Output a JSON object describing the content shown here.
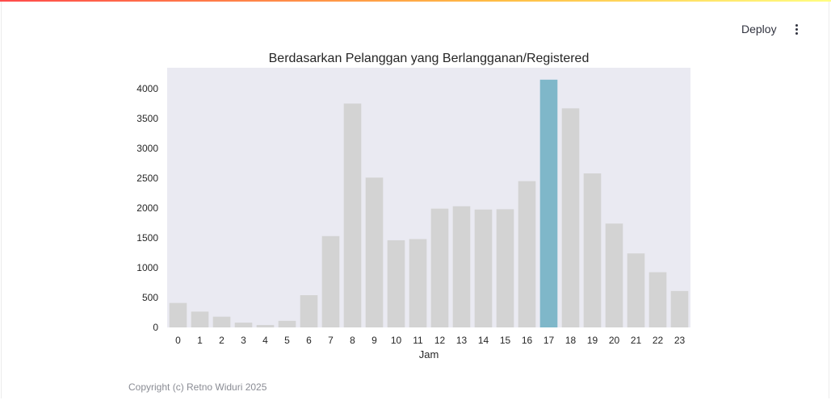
{
  "header": {
    "deploy_label": "Deploy",
    "menu_icon": "kebab-menu-icon"
  },
  "chart_data": {
    "type": "bar",
    "title": "Berdasarkan Pelanggan yang Berlangganan/Registered",
    "xlabel": "Jam",
    "ylabel": "",
    "categories": [
      "0",
      "1",
      "2",
      "3",
      "4",
      "5",
      "6",
      "7",
      "8",
      "9",
      "10",
      "11",
      "12",
      "13",
      "14",
      "15",
      "16",
      "17",
      "18",
      "19",
      "20",
      "21",
      "22",
      "23"
    ],
    "values": [
      410,
      265,
      180,
      80,
      40,
      110,
      540,
      1530,
      3750,
      2510,
      1460,
      1480,
      1990,
      2030,
      1975,
      1980,
      2450,
      4150,
      3670,
      2580,
      1740,
      1240,
      925,
      610
    ],
    "ylim": [
      0,
      4350
    ],
    "yticks": [
      0,
      500,
      1000,
      1500,
      2000,
      2500,
      3000,
      3500,
      4000
    ],
    "grid": false,
    "colors": {
      "background": "#eaeaf2",
      "bar": "#d3d3d3",
      "highlight": "#7fb7c9"
    },
    "highlight_category": "17"
  },
  "footer": {
    "copyright": "Copyright (c) Retno Widuri 2025"
  }
}
